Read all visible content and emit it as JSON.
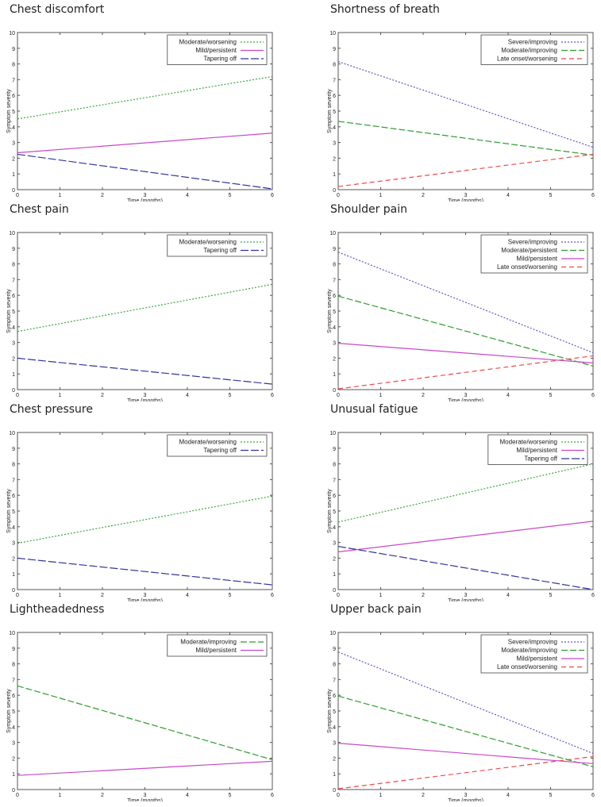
{
  "chart_data": [
    {
      "type": "line",
      "title": "Chest discomfort",
      "xlabel": "Time (months)",
      "ylabel": "Symptom severity",
      "xlim": [
        0,
        6
      ],
      "ylim": [
        0,
        10
      ],
      "xticks": [
        0,
        1,
        2,
        3,
        4,
        5,
        6
      ],
      "yticks": [
        0,
        1,
        2,
        3,
        4,
        5,
        6,
        7,
        8,
        9,
        10
      ],
      "legend": "top-right",
      "series": [
        {
          "name": "Moderate/worsening",
          "style": "mod-worse",
          "x": [
            0,
            6
          ],
          "y": [
            4.5,
            7.2
          ]
        },
        {
          "name": "Mild/persistent",
          "style": "mild",
          "x": [
            0,
            6
          ],
          "y": [
            2.35,
            3.6
          ]
        },
        {
          "name": "Tapering off",
          "style": "taper",
          "x": [
            0,
            6
          ],
          "y": [
            2.25,
            0.05
          ]
        }
      ]
    },
    {
      "type": "line",
      "title": "Shortness of breath",
      "xlabel": "Time (months)",
      "ylabel": "Symptom severity",
      "xlim": [
        0,
        6
      ],
      "ylim": [
        0,
        10
      ],
      "xticks": [
        0,
        1,
        2,
        3,
        4,
        5,
        6
      ],
      "yticks": [
        0,
        1,
        2,
        3,
        4,
        5,
        6,
        7,
        8,
        9,
        10
      ],
      "legend": "top-right",
      "series": [
        {
          "name": "Severe/improving",
          "style": "severe",
          "x": [
            0,
            6
          ],
          "y": [
            8.15,
            2.7
          ]
        },
        {
          "name": "Moderate/improving",
          "style": "mod-improve",
          "x": [
            0,
            6
          ],
          "y": [
            4.35,
            2.2
          ]
        },
        {
          "name": "Late onset/worsening",
          "style": "late",
          "x": [
            0,
            6
          ],
          "y": [
            0.2,
            2.25
          ]
        }
      ]
    },
    {
      "type": "line",
      "title": "Chest pain",
      "xlabel": "Time (months)",
      "ylabel": "Symptom severity",
      "xlim": [
        0,
        6
      ],
      "ylim": [
        0,
        10
      ],
      "xticks": [
        0,
        1,
        2,
        3,
        4,
        5,
        6
      ],
      "yticks": [
        0,
        1,
        2,
        3,
        4,
        5,
        6,
        7,
        8,
        9,
        10
      ],
      "legend": "top-right",
      "series": [
        {
          "name": "Moderate/worsening",
          "style": "mod-worse",
          "x": [
            0,
            6
          ],
          "y": [
            3.7,
            6.7
          ]
        },
        {
          "name": "Tapering off",
          "style": "taper",
          "x": [
            0,
            6
          ],
          "y": [
            2.0,
            0.35
          ]
        }
      ]
    },
    {
      "type": "line",
      "title": "Shoulder pain",
      "xlabel": "Time (months)",
      "ylabel": "Symptom severity",
      "xlim": [
        0,
        6
      ],
      "ylim": [
        0,
        10
      ],
      "xticks": [
        0,
        1,
        2,
        3,
        4,
        5,
        6
      ],
      "yticks": [
        0,
        1,
        2,
        3,
        4,
        5,
        6,
        7,
        8,
        9,
        10
      ],
      "legend": "top-right",
      "series": [
        {
          "name": "Severe/improving",
          "style": "severe",
          "x": [
            0,
            6
          ],
          "y": [
            8.75,
            2.35
          ]
        },
        {
          "name": "Moderate/persistent",
          "style": "mod-improve",
          "x": [
            0,
            6
          ],
          "y": [
            5.95,
            1.5
          ]
        },
        {
          "name": "Mild/persistent",
          "style": "mild",
          "x": [
            0,
            6
          ],
          "y": [
            2.95,
            1.7
          ]
        },
        {
          "name": "Late onset/worsening",
          "style": "late",
          "x": [
            0,
            6
          ],
          "y": [
            0.05,
            2.15
          ]
        }
      ]
    },
    {
      "type": "line",
      "title": "Chest pressure",
      "xlabel": "Time (months)",
      "ylabel": "Symptom severity",
      "xlim": [
        0,
        6
      ],
      "ylim": [
        0,
        10
      ],
      "xticks": [
        0,
        1,
        2,
        3,
        4,
        5,
        6
      ],
      "yticks": [
        0,
        1,
        2,
        3,
        4,
        5,
        6,
        7,
        8,
        9,
        10
      ],
      "legend": "top-right",
      "series": [
        {
          "name": "Moderate/worsening",
          "style": "mod-worse",
          "x": [
            0,
            6
          ],
          "y": [
            2.95,
            5.95
          ]
        },
        {
          "name": "Tapering off",
          "style": "taper",
          "x": [
            0,
            6
          ],
          "y": [
            2.0,
            0.3
          ]
        }
      ]
    },
    {
      "type": "line",
      "title": "Unusual fatigue",
      "xlabel": "Time (months)",
      "ylabel": "Symptom severity",
      "xlim": [
        0,
        6
      ],
      "ylim": [
        0,
        10
      ],
      "xticks": [
        0,
        1,
        2,
        3,
        4,
        5,
        6
      ],
      "yticks": [
        0,
        1,
        2,
        3,
        4,
        5,
        6,
        7,
        8,
        9,
        10
      ],
      "legend": "top-right",
      "series": [
        {
          "name": "Moderate/worsening",
          "style": "mod-worse",
          "x": [
            0,
            6
          ],
          "y": [
            4.3,
            8.0
          ]
        },
        {
          "name": "Mild/persistent",
          "style": "mild",
          "x": [
            0,
            6
          ],
          "y": [
            2.4,
            4.35
          ]
        },
        {
          "name": "Tapering off",
          "style": "taper",
          "x": [
            0,
            6
          ],
          "y": [
            2.75,
            0.0
          ]
        }
      ]
    },
    {
      "type": "line",
      "title": "Lightheadedness",
      "xlabel": "Time (months)",
      "ylabel": "Symptom severity",
      "xlim": [
        0,
        6
      ],
      "ylim": [
        0,
        10
      ],
      "xticks": [
        0,
        1,
        2,
        3,
        4,
        5,
        6
      ],
      "yticks": [
        0,
        1,
        2,
        3,
        4,
        5,
        6,
        7,
        8,
        9,
        10
      ],
      "legend": "top-right",
      "series": [
        {
          "name": "Moderate/improving",
          "style": "mod-improve",
          "x": [
            0,
            6
          ],
          "y": [
            6.6,
            1.9
          ]
        },
        {
          "name": "Mild/persistent",
          "style": "mild",
          "x": [
            0,
            6
          ],
          "y": [
            0.9,
            1.8
          ]
        }
      ]
    },
    {
      "type": "line",
      "title": "Upper back pain",
      "xlabel": "Time (months)",
      "ylabel": "Symptom severity",
      "xlim": [
        0,
        6
      ],
      "ylim": [
        0,
        10
      ],
      "xticks": [
        0,
        1,
        2,
        3,
        4,
        5,
        6
      ],
      "yticks": [
        0,
        1,
        2,
        3,
        4,
        5,
        6,
        7,
        8,
        9,
        10
      ],
      "legend": "top-right",
      "series": [
        {
          "name": "Severe/improving",
          "style": "severe",
          "x": [
            0,
            6
          ],
          "y": [
            8.75,
            2.3
          ]
        },
        {
          "name": "Moderate/improving",
          "style": "mod-improve",
          "x": [
            0,
            6
          ],
          "y": [
            5.95,
            1.45
          ]
        },
        {
          "name": "Mild/persistent",
          "style": "mild",
          "x": [
            0,
            6
          ],
          "y": [
            2.95,
            1.65
          ]
        },
        {
          "name": "Late onset/worsening",
          "style": "late",
          "x": [
            0,
            6
          ],
          "y": [
            0.05,
            2.1
          ]
        }
      ]
    }
  ],
  "styles": {
    "mod-worse": {
      "color": "#3aa83a",
      "dash": "2,2"
    },
    "mod-improve": {
      "color": "#2e9e2e",
      "dash": "8,3"
    },
    "mild": {
      "color": "#c848c8",
      "dash": ""
    },
    "taper": {
      "color": "#33339a",
      "dash": "10,3"
    },
    "severe": {
      "color": "#5858c8",
      "dash": "2,2"
    },
    "late": {
      "color": "#f04848",
      "dash": "6,4"
    }
  }
}
